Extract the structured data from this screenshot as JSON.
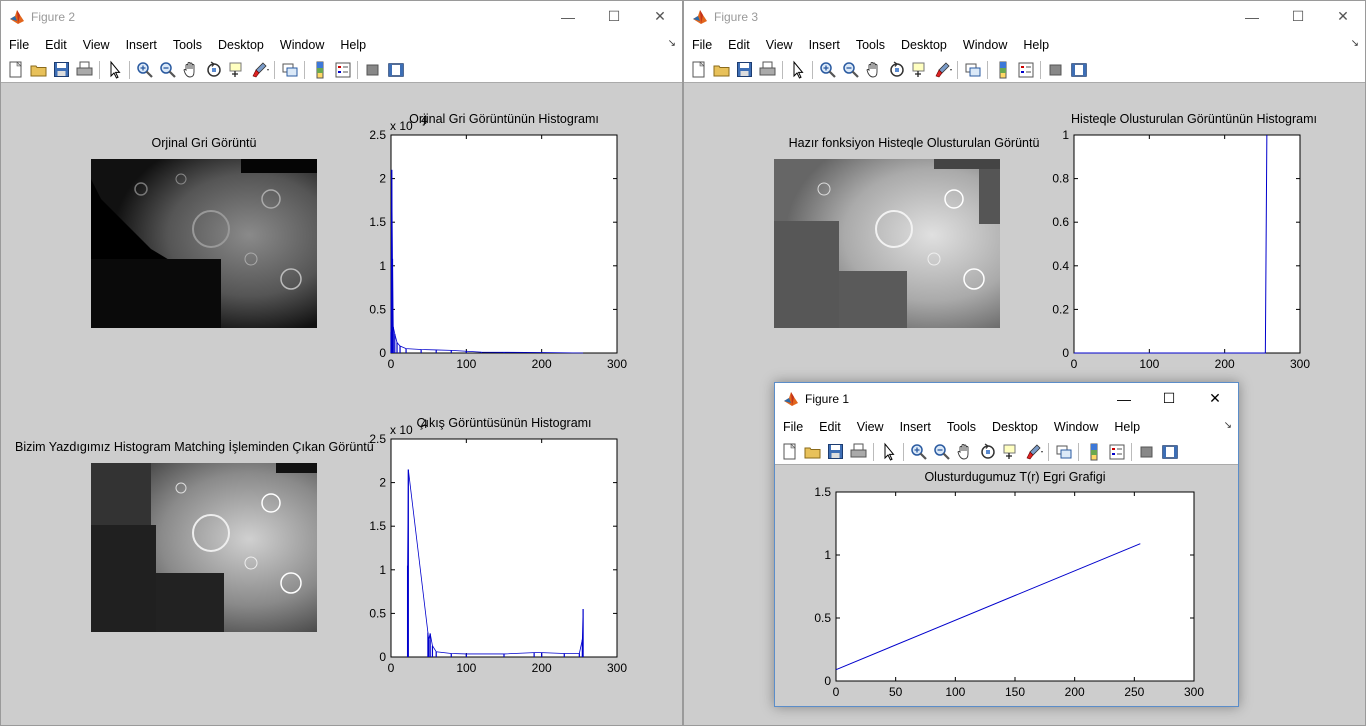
{
  "menu_items": [
    "File",
    "Edit",
    "View",
    "Insert",
    "Tools",
    "Desktop",
    "Window",
    "Help"
  ],
  "toolbar_icons": [
    "new-figure-icon",
    "open-file-icon",
    "save-icon",
    "print-icon",
    "pointer-icon",
    "zoom-in-icon",
    "zoom-out-icon",
    "pan-icon",
    "rotate-3d-icon",
    "data-cursor-icon",
    "brush-icon",
    "link-plot-icon",
    "colorbar-icon",
    "legend-icon",
    "hide-plot-tools-icon",
    "show-plot-tools-icon"
  ],
  "fig2": {
    "title": "Figure 2",
    "img1_title": "Orjinal Gri Görüntü",
    "img2_title": "Bizim Yazdıgımız Histogram Matching İşleminden Çıkan Görüntü",
    "hist1_title": "Orjinal Gri Görüntünün Histogramı",
    "hist2_title": "Çıkış Görüntüsünün Histogramı",
    "exp_label": "x 10",
    "exp_sup": "4"
  },
  "fig3": {
    "title": "Figure 3",
    "img_title": "Hazır fonksiyon Histeqle Olusturulan Görüntü",
    "hist_title": "Histeqle Olusturulan Görüntünün Histogramı"
  },
  "fig1": {
    "title": "Figure 1",
    "plot_title": "Olusturdugumuz T(r) Egri Grafigi"
  },
  "chart_data": [
    {
      "type": "bar",
      "title": "Orjinal Gri Görüntünün Histogramı",
      "xlim": [
        0,
        300
      ],
      "ylim": [
        0,
        25000
      ],
      "xticks": [
        0,
        100,
        200,
        300
      ],
      "yticks": [
        0,
        0.5,
        1,
        1.5,
        2,
        2.5
      ],
      "y_multiplier": "x 10^4",
      "x": [
        0,
        1,
        2,
        3,
        5,
        8,
        12,
        20,
        40,
        60,
        80,
        100,
        120,
        150,
        200,
        255
      ],
      "values": [
        2400,
        21000,
        10800,
        3000,
        2200,
        1200,
        800,
        500,
        400,
        350,
        300,
        200,
        100,
        80,
        60,
        0
      ],
      "color": "#0000cc"
    },
    {
      "type": "bar",
      "title": "Çıkış Görüntüsünün Histogramı",
      "xlim": [
        0,
        300
      ],
      "ylim": [
        0,
        25000
      ],
      "xticks": [
        0,
        100,
        200,
        300
      ],
      "yticks": [
        0,
        0.5,
        1,
        1.5,
        2,
        2.5
      ],
      "y_multiplier": "x 10^4",
      "x": [
        22,
        23,
        49,
        50,
        52,
        55,
        60,
        80,
        100,
        150,
        190,
        200,
        230,
        250,
        254,
        255
      ],
      "values": [
        10500,
        21500,
        2800,
        2000,
        2700,
        1300,
        600,
        400,
        350,
        350,
        500,
        500,
        400,
        400,
        2000,
        5500
      ],
      "color": "#0000cc"
    },
    {
      "type": "line",
      "title": "Histeqle Olusturulan Görüntünün Histogramı",
      "xlim": [
        0,
        300
      ],
      "ylim": [
        0,
        1
      ],
      "xticks": [
        0,
        100,
        200,
        300
      ],
      "yticks": [
        0,
        0.2,
        0.4,
        0.6,
        0.8,
        1
      ],
      "x": [
        0,
        254,
        255,
        256
      ],
      "y": [
        0,
        0,
        0.5,
        1
      ],
      "color": "#0000cc"
    },
    {
      "type": "line",
      "title": "Olusturdugumuz T(r) Egri Grafigi",
      "xlim": [
        0,
        300
      ],
      "ylim": [
        0,
        1.5
      ],
      "xticks": [
        0,
        50,
        100,
        150,
        200,
        250,
        300
      ],
      "yticks": [
        0,
        0.5,
        1,
        1.5
      ],
      "x": [
        0,
        255
      ],
      "y": [
        0.09,
        1.09
      ],
      "color": "#0000cc"
    }
  ]
}
